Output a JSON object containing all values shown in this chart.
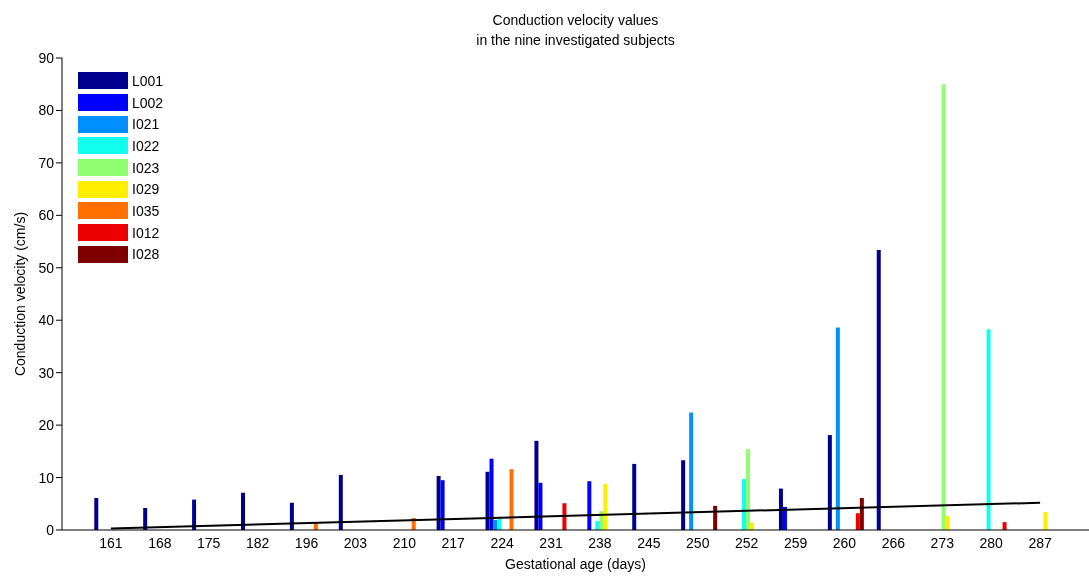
{
  "chart_data": {
    "type": "bar",
    "title": "Conduction velocity values\nin the nine investigated subjects",
    "xlabel": "Gestational age (days)",
    "ylabel": "Conduction velocity (cm/s)",
    "categories": [
      "161",
      "168",
      "175",
      "182",
      "196",
      "203",
      "210",
      "217",
      "224",
      "231",
      "238",
      "245",
      "250",
      "252",
      "259",
      "260",
      "266",
      "273",
      "280",
      "287"
    ],
    "ylim": [
      0,
      90
    ],
    "yticks": [
      0,
      10,
      20,
      30,
      40,
      50,
      60,
      70,
      80,
      90
    ],
    "legend": "top left",
    "series": [
      {
        "name": "L001",
        "color": "#00008f",
        "values": [
          6.1,
          4.2,
          5.8,
          7.1,
          5.2,
          10.5,
          0,
          10.3,
          11.1,
          17.0,
          0,
          12.6,
          13.3,
          0,
          7.9,
          18.1,
          53.4,
          0,
          0,
          0
        ]
      },
      {
        "name": "L002",
        "color": "#0000ff",
        "values": [
          0,
          0,
          0,
          0,
          0,
          0,
          0,
          9.5,
          13.6,
          9.0,
          9.3,
          0,
          0,
          0,
          4.4,
          0,
          0,
          0,
          0,
          0
        ]
      },
      {
        "name": "I021",
        "color": "#0090ff",
        "values": [
          0,
          0,
          0,
          0,
          0,
          0,
          0,
          0,
          1.9,
          0,
          0,
          0,
          22.4,
          0,
          0,
          38.6,
          0,
          0,
          0,
          0
        ]
      },
      {
        "name": "I022",
        "color": "#10ffef",
        "values": [
          0,
          0,
          0,
          0,
          0,
          0,
          0,
          0,
          2.1,
          0,
          1.7,
          0,
          0,
          9.7,
          0,
          0,
          0,
          0,
          38.3,
          0
        ]
      },
      {
        "name": "I023",
        "color": "#8fff70",
        "values": [
          0,
          0,
          0,
          0,
          0,
          0,
          0,
          0,
          0,
          0,
          3.6,
          0,
          0,
          15.4,
          0,
          0,
          0,
          85.0,
          0,
          0
        ]
      },
      {
        "name": "I029",
        "color": "#ffee00",
        "values": [
          0,
          0,
          0,
          0,
          0,
          0,
          0,
          0,
          0,
          0,
          8.8,
          0,
          0,
          1.4,
          0,
          0,
          0,
          2.7,
          0,
          3.4
        ]
      },
      {
        "name": "I035",
        "color": "#ff7000",
        "values": [
          0,
          0,
          0,
          0,
          1.4,
          0,
          2.3,
          0,
          11.6,
          0,
          0,
          0,
          0,
          0,
          0,
          0,
          0,
          0,
          0,
          0
        ]
      },
      {
        "name": "I012",
        "color": "#ee0000",
        "values": [
          0,
          0,
          0,
          0,
          0,
          0,
          0,
          0,
          0,
          5.1,
          0,
          0,
          0,
          0,
          0,
          3.2,
          0,
          0,
          1.5,
          0
        ]
      },
      {
        "name": "I028",
        "color": "#800000",
        "values": [
          0,
          0,
          0,
          0,
          0,
          0,
          0,
          0,
          0,
          0,
          0,
          0,
          4.6,
          0,
          0,
          6.1,
          0,
          0,
          0,
          0
        ]
      },
      {
        "type": "line",
        "color": "#000000",
        "x": [
          "161",
          "287"
        ],
        "values": [
          0.3,
          5.2
        ]
      }
    ]
  }
}
